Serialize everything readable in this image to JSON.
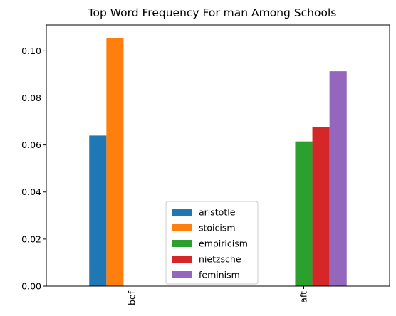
{
  "chart_data": {
    "type": "bar",
    "title": "Top Word Frequency For man Among Schools",
    "xlabel": "",
    "ylabel": "",
    "categories": [
      "bef",
      "aft"
    ],
    "ylim": [
      0,
      0.111
    ],
    "yticks": [
      "0.00",
      "0.02",
      "0.04",
      "0.06",
      "0.08",
      "0.10"
    ],
    "grid": false,
    "legend_position": "lower center",
    "series": [
      {
        "name": "aristotle",
        "color": "#1f77b4",
        "values": [
          0.064,
          null
        ]
      },
      {
        "name": "stoicism",
        "color": "#ff7f0e",
        "values": [
          0.1055,
          null
        ]
      },
      {
        "name": "empiricism",
        "color": "#2ca02c",
        "values": [
          null,
          0.0615
        ]
      },
      {
        "name": "nietzsche",
        "color": "#d62728",
        "values": [
          null,
          0.0675
        ]
      },
      {
        "name": "feminism",
        "color": "#9467bd",
        "values": [
          null,
          0.0913
        ]
      }
    ]
  }
}
